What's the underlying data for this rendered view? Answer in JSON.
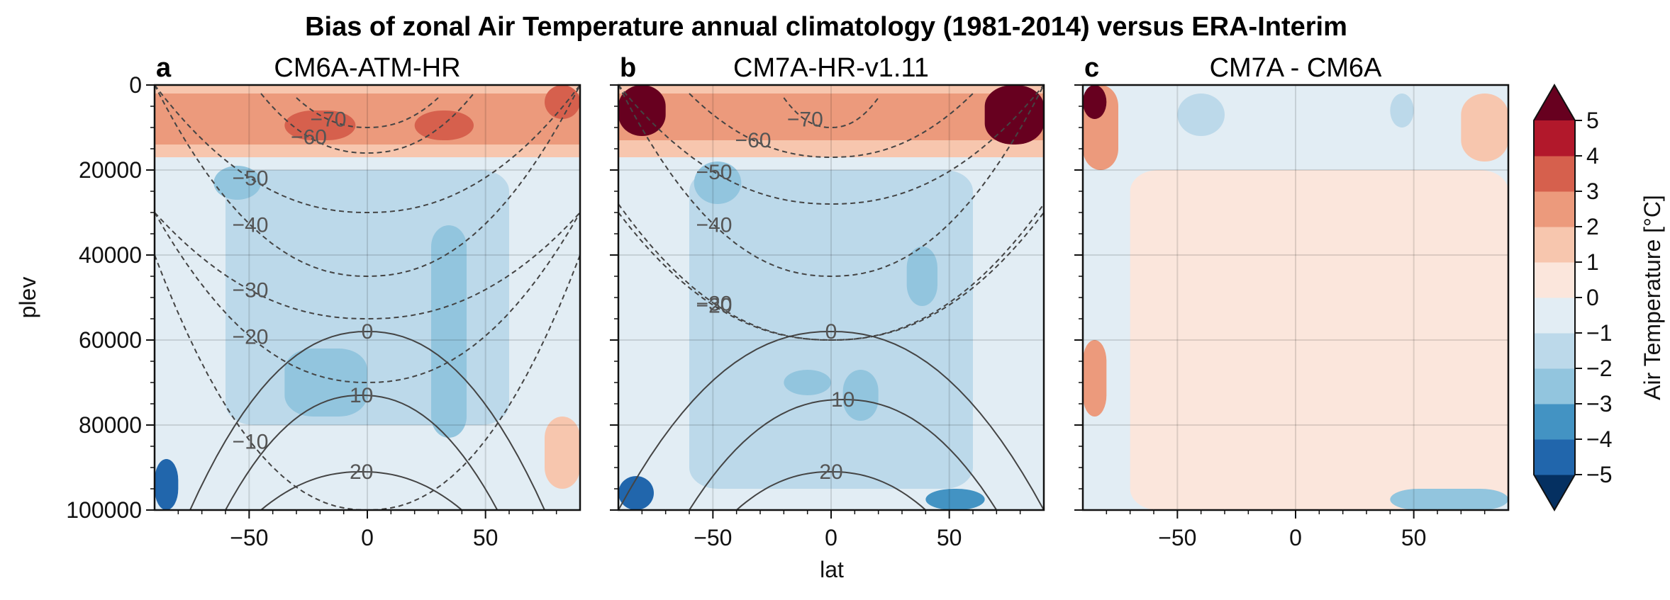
{
  "chart_data": {
    "type": "heatmap",
    "title": "Bias of zonal Air Temperature annual climatology (1981-2014) versus ERA-Interim",
    "xlabel": "lat",
    "ylabel": "plev",
    "xlim": [
      -90,
      90
    ],
    "ylim": [
      0,
      100000
    ],
    "y_inverted": true,
    "x_ticks": [
      -50,
      0,
      50
    ],
    "x_tick_labels": [
      "−50",
      "0",
      "50"
    ],
    "y_ticks": [
      0,
      20000,
      40000,
      60000,
      80000,
      100000
    ],
    "y_tick_labels": [
      "0",
      "20000",
      "40000",
      "60000",
      "80000",
      "100000"
    ],
    "grid": true,
    "legend": "right colorbar",
    "colorbar": {
      "label": "Air Temperature [°C]",
      "levels": [
        -5,
        -4,
        -3,
        -2,
        -1,
        0,
        1,
        2,
        3,
        4,
        5
      ],
      "tick_labels": [
        "−5",
        "−4",
        "−3",
        "−2",
        "−1",
        "0",
        "1",
        "2",
        "3",
        "4",
        "5"
      ],
      "extend": "both",
      "colors": [
        "#053061",
        "#2166ac",
        "#4393c3",
        "#92c5de",
        "#bcd9ea",
        "#e2edf4",
        "#fbe6dc",
        "#f7c6ae",
        "#ec9a7c",
        "#d6604d",
        "#b2182b",
        "#67001f"
      ]
    },
    "panels": [
      {
        "letter": "a",
        "title": "CM6A-ATM-HR",
        "bias_fields": [
          {
            "lat_range": [
              -90,
              90
            ],
            "plev_range": [
              0,
              100000
            ],
            "value": -0.5
          },
          {
            "lat_range": [
              -90,
              90
            ],
            "plev_range": [
              0,
              17000
            ],
            "value": 1.5
          },
          {
            "lat_range": [
              -90,
              90
            ],
            "plev_range": [
              2000,
              14000
            ],
            "value": 2.5
          },
          {
            "lat_range": [
              -35,
              -5
            ],
            "plev_range": [
              6000,
              13000
            ],
            "value": 3.5
          },
          {
            "lat_range": [
              20,
              45
            ],
            "plev_range": [
              6000,
              13000
            ],
            "value": 3.5
          },
          {
            "lat_range": [
              75,
              90
            ],
            "plev_range": [
              0,
              8000
            ],
            "value": 3.5
          },
          {
            "lat_range": [
              -60,
              60
            ],
            "plev_range": [
              20000,
              80000
            ],
            "value": -1.5
          },
          {
            "lat_range": [
              -65,
              -45
            ],
            "plev_range": [
              19000,
              27000
            ],
            "value": -2.5
          },
          {
            "lat_range": [
              27,
              42
            ],
            "plev_range": [
              33000,
              83000
            ],
            "value": -2.5
          },
          {
            "lat_range": [
              -35,
              0
            ],
            "plev_range": [
              62000,
              78000
            ],
            "value": -2.5
          },
          {
            "lat_range": [
              -90,
              -80
            ],
            "plev_range": [
              88000,
              100000
            ],
            "value": -4.5
          },
          {
            "lat_range": [
              75,
              90
            ],
            "plev_range": [
              78000,
              95000
            ],
            "value": 1.5
          }
        ],
        "contours": [
          {
            "value": -70,
            "label": "−70",
            "lat_range": [
              -30,
              30
            ],
            "plev_range": [
              3000,
              10000
            ]
          },
          {
            "value": -60,
            "label": "−60",
            "lat_range": [
              -45,
              45
            ],
            "plev_range": [
              2000,
              16000
            ]
          },
          {
            "value": -50,
            "label": "−50",
            "lat_range": [
              -90,
              90
            ],
            "plev_range": [
              0,
              30000
            ]
          },
          {
            "value": -40,
            "label": "−40",
            "lat_range": [
              -90,
              90
            ],
            "plev_range": [
              0,
              45000
            ]
          },
          {
            "value": -30,
            "label": "−30",
            "lat_range": [
              -90,
              90
            ],
            "plev_range": [
              30000,
              55000
            ]
          },
          {
            "value": -20,
            "label": "−20",
            "lat_range": [
              -90,
              90
            ],
            "plev_range": [
              30000,
              70000
            ]
          },
          {
            "value": -10,
            "label": "−10",
            "lat_range": [
              -90,
              90
            ],
            "plev_range": [
              40000,
              100000
            ]
          },
          {
            "value": 0,
            "label": "0",
            "lat_range": [
              -75,
              75
            ],
            "plev_range": [
              58000,
              100000
            ]
          },
          {
            "value": 10,
            "label": "10",
            "lat_range": [
              -60,
              55
            ],
            "plev_range": [
              73000,
              100000
            ]
          },
          {
            "value": 20,
            "label": "20",
            "lat_range": [
              -45,
              40
            ],
            "plev_range": [
              91000,
              100000
            ]
          }
        ]
      },
      {
        "letter": "b",
        "title": "CM7A-HR-v1.11",
        "bias_fields": [
          {
            "lat_range": [
              -90,
              90
            ],
            "plev_range": [
              0,
              100000
            ],
            "value": -0.5
          },
          {
            "lat_range": [
              -90,
              90
            ],
            "plev_range": [
              0,
              17000
            ],
            "value": 1.5
          },
          {
            "lat_range": [
              -90,
              90
            ],
            "plev_range": [
              2000,
              13000
            ],
            "value": 2.5
          },
          {
            "lat_range": [
              -90,
              -70
            ],
            "plev_range": [
              0,
              12000
            ],
            "value": 5.5
          },
          {
            "lat_range": [
              65,
              90
            ],
            "plev_range": [
              0,
              14000
            ],
            "value": 5.5
          },
          {
            "lat_range": [
              -60,
              60
            ],
            "plev_range": [
              20000,
              95000
            ],
            "value": -1.5
          },
          {
            "lat_range": [
              -58,
              -38
            ],
            "plev_range": [
              18000,
              28000
            ],
            "value": -2.5
          },
          {
            "lat_range": [
              32,
              45
            ],
            "plev_range": [
              38000,
              52000
            ],
            "value": -2.5
          },
          {
            "lat_range": [
              -20,
              0
            ],
            "plev_range": [
              67000,
              73000
            ],
            "value": -2.5
          },
          {
            "lat_range": [
              5,
              20
            ],
            "plev_range": [
              67000,
              79000
            ],
            "value": -2.5
          },
          {
            "lat_range": [
              -90,
              -75
            ],
            "plev_range": [
              92000,
              100000
            ],
            "value": -4.5
          },
          {
            "lat_range": [
              40,
              65
            ],
            "plev_range": [
              95000,
              100000
            ],
            "value": -3.5
          }
        ],
        "contours": [
          {
            "value": -70,
            "label": "−70",
            "lat_range": [
              -20,
              20
            ],
            "plev_range": [
              3000,
              10000
            ]
          },
          {
            "value": -60,
            "label": "−60",
            "lat_range": [
              -60,
              60
            ],
            "plev_range": [
              2000,
              17000
            ]
          },
          {
            "value": -50,
            "label": "−50",
            "lat_range": [
              -90,
              90
            ],
            "plev_range": [
              0,
              28000
            ]
          },
          {
            "value": -40,
            "label": "−40",
            "lat_range": [
              -90,
              90
            ],
            "plev_range": [
              0,
              45000
            ]
          },
          {
            "value": -30,
            "label": "−30",
            "lat_range": [
              -90,
              90
            ],
            "plev_range": [
              28000,
              60000
            ]
          },
          {
            "value": -20,
            "label": "−20",
            "lat_range": [
              -90,
              90
            ],
            "plev_range": [
              30000,
              60000
            ]
          },
          {
            "value": 0,
            "label": "0",
            "lat_range": [
              -90,
              90
            ],
            "plev_range": [
              58000,
              100000
            ]
          },
          {
            "value": 10,
            "label": "10",
            "lat_range": [
              -60,
              70
            ],
            "plev_range": [
              74000,
              100000
            ]
          },
          {
            "value": 20,
            "label": "20",
            "lat_range": [
              -40,
              40
            ],
            "plev_range": [
              91000,
              100000
            ]
          }
        ]
      },
      {
        "letter": "c",
        "title": "CM7A - CM6A",
        "bias_fields": [
          {
            "lat_range": [
              -90,
              90
            ],
            "plev_range": [
              0,
              100000
            ],
            "value": -0.5
          },
          {
            "lat_range": [
              -70,
              90
            ],
            "plev_range": [
              20000,
              100000
            ],
            "value": 0.5
          },
          {
            "lat_range": [
              -90,
              -75
            ],
            "plev_range": [
              0,
              20000
            ],
            "value": 2.5
          },
          {
            "lat_range": [
              -90,
              -80
            ],
            "plev_range": [
              0,
              8000
            ],
            "value": 5.5
          },
          {
            "lat_range": [
              70,
              90
            ],
            "plev_range": [
              2000,
              18000
            ],
            "value": 1.5
          },
          {
            "lat_range": [
              -90,
              -80
            ],
            "plev_range": [
              60000,
              78000
            ],
            "value": 2.5
          },
          {
            "lat_range": [
              -50,
              -30
            ],
            "plev_range": [
              2000,
              12000
            ],
            "value": -1.5
          },
          {
            "lat_range": [
              40,
              50
            ],
            "plev_range": [
              2000,
              10000
            ],
            "value": -1.5
          },
          {
            "lat_range": [
              40,
              90
            ],
            "plev_range": [
              95000,
              100000
            ],
            "value": -2.5
          }
        ],
        "contours": []
      }
    ]
  }
}
